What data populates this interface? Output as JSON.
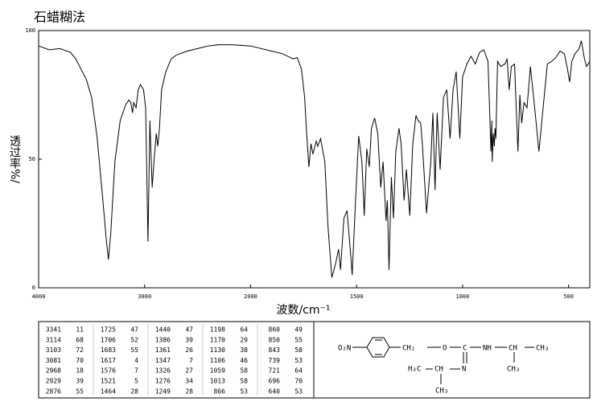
{
  "chart_data": {
    "type": "line",
    "title": "石蜡糊法",
    "x_label": "波数/cm⁻¹",
    "y_label": "透过率%/",
    "xlim": [
      4000,
      400
    ],
    "ylim": [
      0,
      100
    ],
    "xticks": [
      4000,
      3000,
      2000,
      1500,
      1000,
      500
    ],
    "yticks": [
      0,
      50,
      100
    ],
    "color": "#000000",
    "x": [
      4000,
      3900,
      3800,
      3700,
      3650,
      3550,
      3500,
      3450,
      3400,
      3360,
      3341,
      3320,
      3280,
      3230,
      3180,
      3150,
      3130,
      3114,
      3103,
      3081,
      3060,
      3040,
      3010,
      2990,
      2968,
      2950,
      2929,
      2910,
      2890,
      2876,
      2860,
      2840,
      2800,
      2750,
      2700,
      2600,
      2500,
      2400,
      2300,
      2200,
      2100,
      2000,
      1900,
      1850,
      1800,
      1780,
      1760,
      1745,
      1735,
      1725,
      1715,
      1706,
      1690,
      1683,
      1670,
      1650,
      1635,
      1617,
      1600,
      1585,
      1576,
      1560,
      1545,
      1530,
      1521,
      1505,
      1490,
      1475,
      1464,
      1452,
      1440,
      1430,
      1415,
      1400,
      1386,
      1375,
      1361,
      1355,
      1347,
      1336,
      1326,
      1315,
      1300,
      1290,
      1276,
      1265,
      1249,
      1235,
      1220,
      1210,
      1198,
      1190,
      1170,
      1150,
      1140,
      1130,
      1120,
      1106,
      1090,
      1075,
      1059,
      1045,
      1030,
      1013,
      1000,
      980,
      960,
      940,
      920,
      900,
      880,
      866,
      862,
      860,
      855,
      850,
      847,
      843,
      835,
      820,
      800,
      790,
      780,
      770,
      755,
      739,
      730,
      721,
      710,
      696,
      680,
      660,
      640,
      620,
      600,
      580,
      560,
      540,
      520,
      505,
      495,
      485,
      470,
      450,
      440,
      425,
      415,
      400
    ],
    "values": [
      94,
      92.5,
      93,
      91.5,
      89,
      81,
      74,
      59,
      37,
      18,
      11,
      21,
      49,
      65,
      71,
      73,
      72,
      68,
      72,
      70,
      77,
      79,
      77,
      70,
      18,
      65,
      39,
      50,
      60,
      55,
      62,
      77,
      84,
      89,
      90.5,
      92,
      93,
      94,
      94.5,
      94.5,
      94.3,
      94,
      92,
      91,
      89,
      89.5,
      85,
      74,
      59,
      47,
      56,
      52,
      57,
      55,
      58,
      49,
      24,
      4,
      9,
      15,
      7,
      27,
      30,
      15,
      5,
      34,
      59,
      49,
      28,
      54,
      47,
      62,
      66,
      60,
      39,
      49,
      26,
      34,
      7,
      43,
      27,
      53,
      62,
      56,
      34,
      46,
      28,
      56,
      67,
      65,
      64,
      56,
      29,
      49,
      68,
      38,
      68,
      46,
      74,
      77,
      58,
      77,
      84,
      58,
      82,
      87,
      90,
      87,
      91.5,
      92.5,
      88,
      53,
      65,
      49,
      60,
      55,
      62,
      58,
      88,
      86,
      87,
      89,
      77,
      86,
      87,
      53,
      75,
      64,
      72,
      70,
      86,
      70,
      53,
      70,
      87,
      88,
      89.5,
      92,
      91,
      85,
      80,
      88,
      91,
      93,
      96,
      89,
      86,
      88
    ]
  },
  "peak_table": [
    [
      [
        3341,
        11
      ],
      [
        1725,
        47
      ],
      [
        1440,
        47
      ],
      [
        1198,
        64
      ],
      [
        860,
        49
      ]
    ],
    [
      [
        3114,
        68
      ],
      [
        1706,
        52
      ],
      [
        1386,
        39
      ],
      [
        1170,
        29
      ],
      [
        850,
        55
      ]
    ],
    [
      [
        3103,
        72
      ],
      [
        1683,
        55
      ],
      [
        1361,
        26
      ],
      [
        1130,
        38
      ],
      [
        843,
        58
      ]
    ],
    [
      [
        3081,
        70
      ],
      [
        1617,
        4
      ],
      [
        1347,
        7
      ],
      [
        1106,
        46
      ],
      [
        739,
        53
      ]
    ],
    [
      [
        2968,
        18
      ],
      [
        1576,
        7
      ],
      [
        1326,
        27
      ],
      [
        1059,
        58
      ],
      [
        721,
        64
      ]
    ],
    [
      [
        2929,
        39
      ],
      [
        1521,
        5
      ],
      [
        1276,
        34
      ],
      [
        1013,
        58
      ],
      [
        696,
        70
      ]
    ],
    [
      [
        2876,
        55
      ],
      [
        1464,
        28
      ],
      [
        1249,
        28
      ],
      [
        866,
        53
      ],
      [
        640,
        53
      ]
    ]
  ],
  "structure": {
    "labels": [
      "O₂N",
      "CH₂",
      "O",
      "C",
      "NH",
      "CH",
      "CH₃",
      "CH₃",
      "N",
      "CH",
      "H₃C",
      "CH₃"
    ]
  }
}
